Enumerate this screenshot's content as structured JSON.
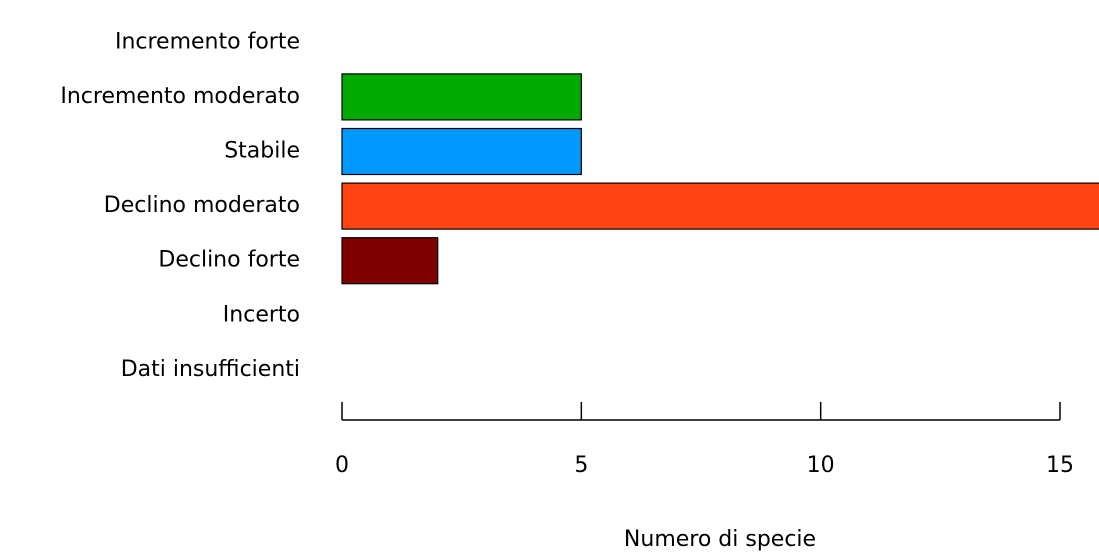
{
  "chart_data": {
    "type": "bar",
    "orientation": "horizontal",
    "categories": [
      "Incremento forte",
      "Incremento moderato",
      "Stabile",
      "Declino moderato",
      "Declino forte",
      "Incerto",
      "Dati insufficienti"
    ],
    "values": [
      0,
      5,
      5,
      16,
      2,
      0,
      0
    ],
    "colors": [
      "#ffffff",
      "#00aa00",
      "#0099ff",
      "#ff4411",
      "#800000",
      "#ffffff",
      "#ffffff"
    ],
    "xlim": [
      0,
      15
    ],
    "xticks": [
      0,
      5,
      10,
      15
    ],
    "x_label": "Numero di specie"
  }
}
